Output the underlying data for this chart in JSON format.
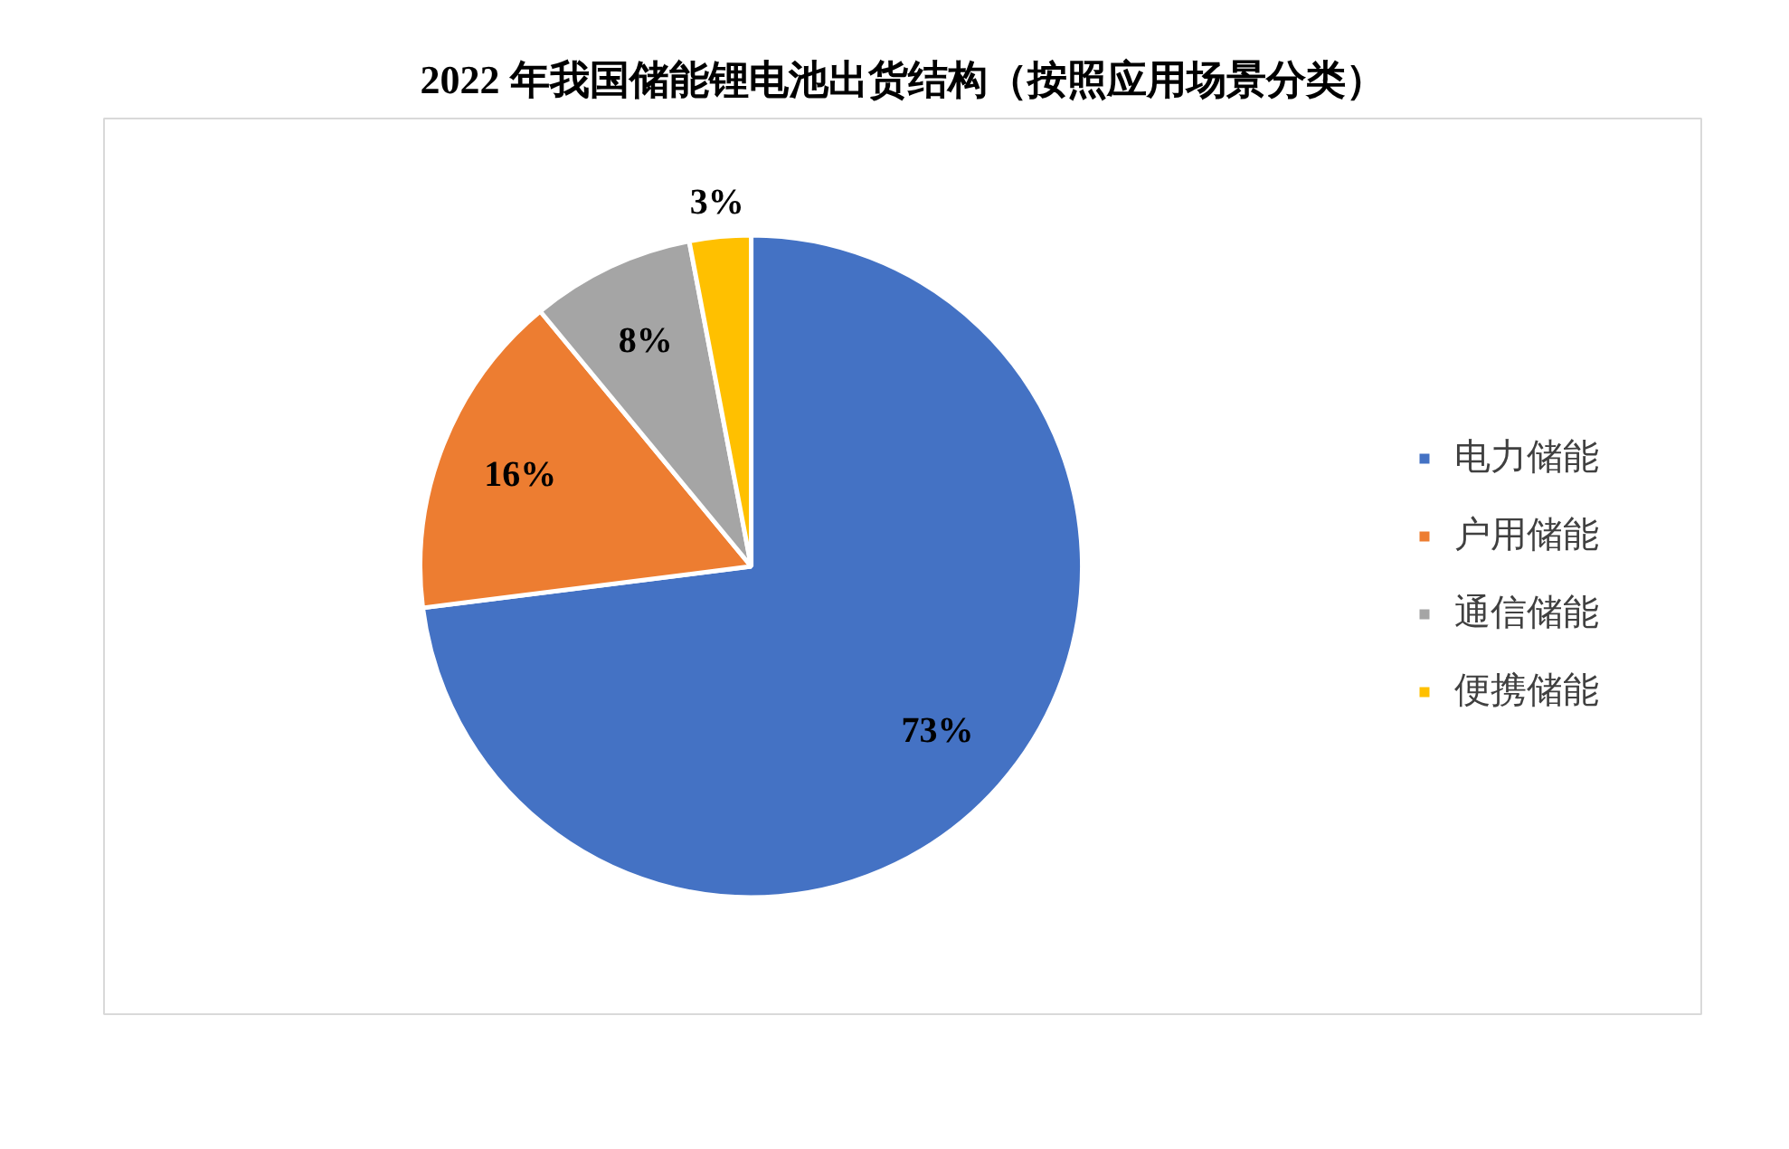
{
  "chart_data": {
    "type": "pie",
    "title": "2022 年我国储能锂电池出货结构（按照应用场景分类）",
    "categories": [
      "电力储能",
      "户用储能",
      "通信储能",
      "便携储能"
    ],
    "values": [
      73,
      16,
      8,
      3
    ],
    "colors": [
      "#4472c4",
      "#ed7d31",
      "#a5a5a5",
      "#ffc000"
    ],
    "value_labels": [
      "73%",
      "16%",
      "8%",
      "3%"
    ],
    "legend": "right"
  }
}
